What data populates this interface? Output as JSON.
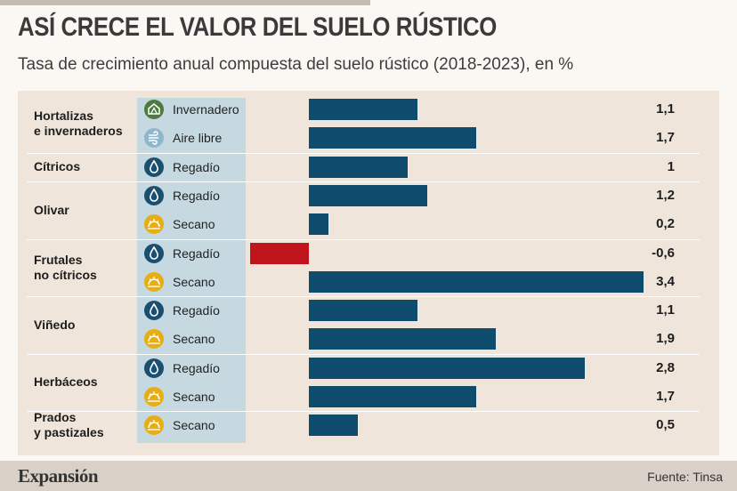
{
  "title": "ASÍ CRECE EL VALOR DEL SUELO RÚSTICO",
  "subtitle": "Tasa de crecimiento anual compuesta del suelo rústico (2018-2023), en %",
  "source": "Fuente: Tinsa",
  "brand": "Expansión",
  "colors": {
    "positive": "#0e4b6c",
    "negative": "#c0141c",
    "icon_blue": "#1a4f70",
    "icon_yellow": "#e7ad13",
    "icon_green": "#4c7a3f",
    "icon_light": "#8fb7cc"
  },
  "groups": [
    {
      "label": "Hortalizas\ne invernaderos"
    },
    {
      "label": "Cítricos"
    },
    {
      "label": "Olivar"
    },
    {
      "label": "Frutales\nno cítricos"
    },
    {
      "label": "Viñedo"
    },
    {
      "label": "Herbáceos"
    },
    {
      "label": "Prados\ny pastizales"
    }
  ],
  "rows": [
    {
      "label": "Invernadero",
      "icon": "greenhouse-icon",
      "value": "1,1"
    },
    {
      "label": "Aire libre",
      "icon": "wind-icon",
      "value": "1,7"
    },
    {
      "label": "Regadío",
      "icon": "water-drop-icon",
      "value": "1"
    },
    {
      "label": "Regadío",
      "icon": "water-drop-icon",
      "value": "1,2"
    },
    {
      "label": "Secano",
      "icon": "sun-icon",
      "value": "0,2"
    },
    {
      "label": "Regadío",
      "icon": "water-drop-icon",
      "value": "-0,6"
    },
    {
      "label": "Secano",
      "icon": "sun-icon",
      "value": "3,4"
    },
    {
      "label": "Regadío",
      "icon": "water-drop-icon",
      "value": "1,1"
    },
    {
      "label": "Secano",
      "icon": "sun-icon",
      "value": "1,9"
    },
    {
      "label": "Regadío",
      "icon": "water-drop-icon",
      "value": "2,8"
    },
    {
      "label": "Secano",
      "icon": "sun-icon",
      "value": "1,7"
    },
    {
      "label": "Secano",
      "icon": "sun-icon",
      "value": "0,5"
    }
  ],
  "chart_data": {
    "type": "bar",
    "orientation": "horizontal",
    "categories": [
      "Hortalizas e invernaderos - Invernadero",
      "Hortalizas e invernaderos - Aire libre",
      "Cítricos - Regadío",
      "Olivar - Regadío",
      "Olivar - Secano",
      "Frutales no cítricos - Regadío",
      "Frutales no cítricos - Secano",
      "Viñedo - Regadío",
      "Viñedo - Secano",
      "Herbáceos - Regadío",
      "Herbáceos - Secano",
      "Prados y pastizales - Secano"
    ],
    "values": [
      1.1,
      1.7,
      1.0,
      1.2,
      0.2,
      -0.6,
      3.4,
      1.1,
      1.9,
      2.8,
      1.7,
      0.5
    ],
    "xlim": [
      -0.6,
      3.4
    ],
    "grid": false,
    "legend": "none"
  }
}
